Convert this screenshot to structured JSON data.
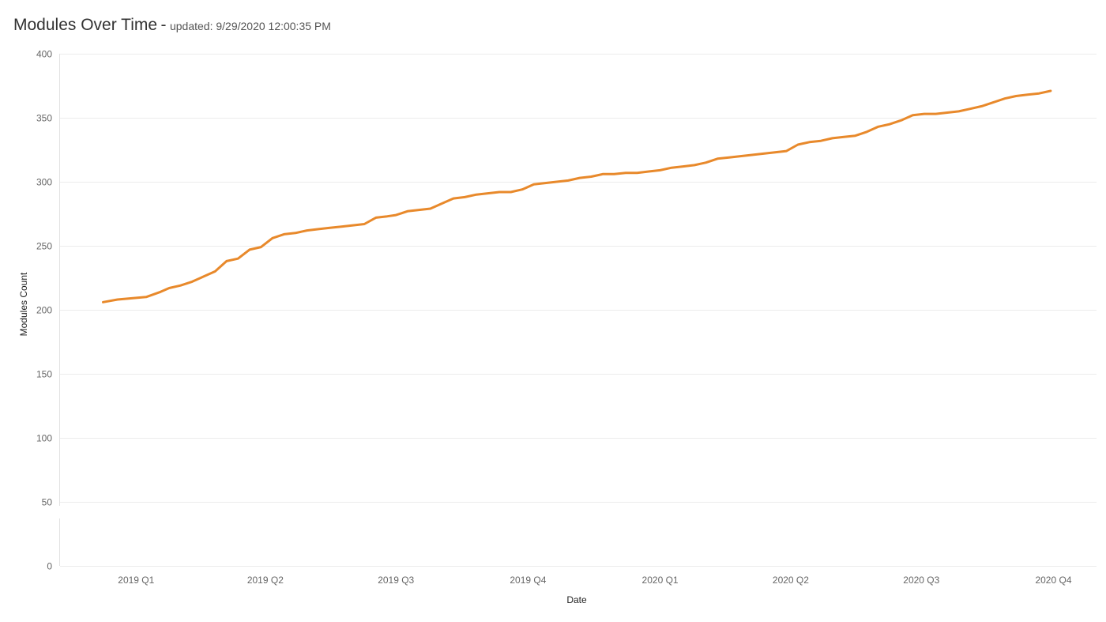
{
  "header": {
    "title": "Modules Over Time",
    "separator": "-",
    "subtitle": "updated: 9/29/2020 12:00:35 PM"
  },
  "chart_data": {
    "type": "line",
    "title": "Modules Over Time",
    "subtitle": "updated: 9/29/2020 12:00:35 PM",
    "xlabel": "Date",
    "ylabel": "Modules Count",
    "ylim": [
      0,
      400
    ],
    "yticks": [
      0,
      50,
      100,
      150,
      200,
      250,
      300,
      350,
      400
    ],
    "xticks": [
      "2019 Q1",
      "2019 Q2",
      "2019 Q3",
      "2019 Q4",
      "2020 Q1",
      "2020 Q2",
      "2020 Q3",
      "2020 Q4"
    ],
    "xtick_dates": [
      "2019-01-01",
      "2019-04-01",
      "2019-07-01",
      "2019-10-01",
      "2020-01-01",
      "2020-04-01",
      "2020-07-01",
      "2020-10-01"
    ],
    "grid": true,
    "legend": "none",
    "color": "#e8892b",
    "series": [
      {
        "x": [
          "2018-12-09",
          "2018-12-19",
          "2018-12-29",
          "2019-01-08",
          "2019-01-18",
          "2019-01-24",
          "2019-02-01",
          "2019-02-09",
          "2019-02-17",
          "2019-02-25",
          "2019-03-05",
          "2019-03-13",
          "2019-03-21",
          "2019-03-29",
          "2019-04-06",
          "2019-04-14",
          "2019-04-22",
          "2019-04-30",
          "2019-05-08",
          "2019-05-16",
          "2019-05-24",
          "2019-06-01",
          "2019-06-09",
          "2019-06-17",
          "2019-06-25",
          "2019-07-01",
          "2019-07-09",
          "2019-07-17",
          "2019-07-25",
          "2019-08-02",
          "2019-08-10",
          "2019-08-18",
          "2019-08-26",
          "2019-09-03",
          "2019-09-11",
          "2019-09-19",
          "2019-09-27",
          "2019-10-05",
          "2019-10-13",
          "2019-10-21",
          "2019-10-29",
          "2019-11-06",
          "2019-11-14",
          "2019-11-22",
          "2019-11-30",
          "2019-12-08",
          "2019-12-16",
          "2019-12-24",
          "2020-01-01",
          "2020-01-09",
          "2020-01-17",
          "2020-01-25",
          "2020-02-02",
          "2020-02-10",
          "2020-02-18",
          "2020-02-26",
          "2020-03-05",
          "2020-03-13",
          "2020-03-21",
          "2020-03-29",
          "2020-04-06",
          "2020-04-14",
          "2020-04-22",
          "2020-04-30",
          "2020-05-08",
          "2020-05-16",
          "2020-05-24",
          "2020-06-01",
          "2020-06-09",
          "2020-06-17",
          "2020-06-25",
          "2020-07-03",
          "2020-07-11",
          "2020-07-19",
          "2020-07-27",
          "2020-08-04",
          "2020-08-12",
          "2020-08-20",
          "2020-08-28",
          "2020-09-05",
          "2020-09-13",
          "2020-09-21",
          "2020-09-29"
        ],
        "y": [
          206,
          208,
          209,
          210,
          214,
          217,
          219,
          222,
          226,
          230,
          238,
          240,
          247,
          249,
          256,
          259,
          260,
          262,
          263,
          264,
          265,
          266,
          267,
          272,
          273,
          274,
          277,
          278,
          279,
          283,
          287,
          288,
          290,
          291,
          292,
          292,
          294,
          298,
          299,
          300,
          301,
          303,
          304,
          306,
          306,
          307,
          307,
          308,
          309,
          311,
          312,
          313,
          315,
          318,
          319,
          320,
          321,
          322,
          323,
          324,
          329,
          331,
          332,
          334,
          335,
          336,
          339,
          343,
          345,
          348,
          352,
          353,
          353,
          354,
          355,
          357,
          359,
          362,
          365,
          367,
          368,
          369,
          371
        ]
      }
    ]
  }
}
